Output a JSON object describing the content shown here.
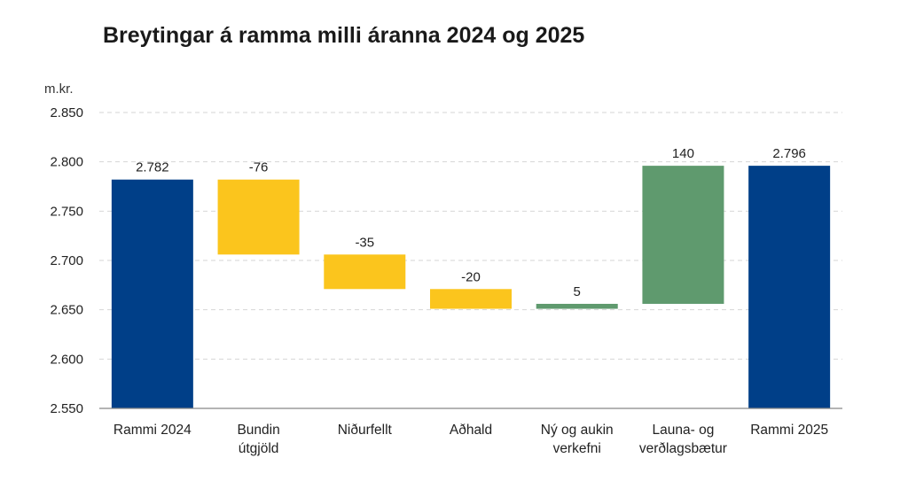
{
  "title": "Breytingar á ramma milli áranna 2024 og 2025",
  "unit_label": "m.kr.",
  "colors": {
    "total": "#003f88",
    "decrease": "#fbc51d",
    "increase": "#5f9a6e",
    "grid": "#d6d6d6",
    "axis": "#888888",
    "text": "#222222"
  },
  "chart_data": {
    "type": "bar",
    "subtype": "waterfall",
    "title": "Breytingar á ramma milli áranna 2024 og 2025",
    "ylabel": "m.kr.",
    "ylim": [
      2550,
      2850
    ],
    "yticks": [
      2550,
      2600,
      2650,
      2700,
      2750,
      2800,
      2850
    ],
    "ytick_labels": [
      "2.550",
      "2.600",
      "2.650",
      "2.700",
      "2.750",
      "2.800",
      "2.850"
    ],
    "grid": true,
    "categories": [
      [
        "Rammi 2024"
      ],
      [
        "Bundin",
        "útgjöld"
      ],
      [
        "Niðurfellt"
      ],
      [
        "Aðhald"
      ],
      [
        "Ný og aukin",
        "verkefni"
      ],
      [
        "Launa- og",
        "verðlagsbætur"
      ],
      [
        "Rammi 2025"
      ]
    ],
    "bars": [
      {
        "kind": "total",
        "start": 2550,
        "end": 2782,
        "label": "2.782"
      },
      {
        "kind": "decrease",
        "start": 2782,
        "end": 2706,
        "label": "-76"
      },
      {
        "kind": "decrease",
        "start": 2706,
        "end": 2671,
        "label": "-35"
      },
      {
        "kind": "decrease",
        "start": 2671,
        "end": 2651,
        "label": "-20"
      },
      {
        "kind": "increase",
        "start": 2651,
        "end": 2656,
        "label": "5"
      },
      {
        "kind": "increase",
        "start": 2656,
        "end": 2796,
        "label": "140"
      },
      {
        "kind": "total",
        "start": 2550,
        "end": 2796,
        "label": "2.796"
      }
    ]
  }
}
